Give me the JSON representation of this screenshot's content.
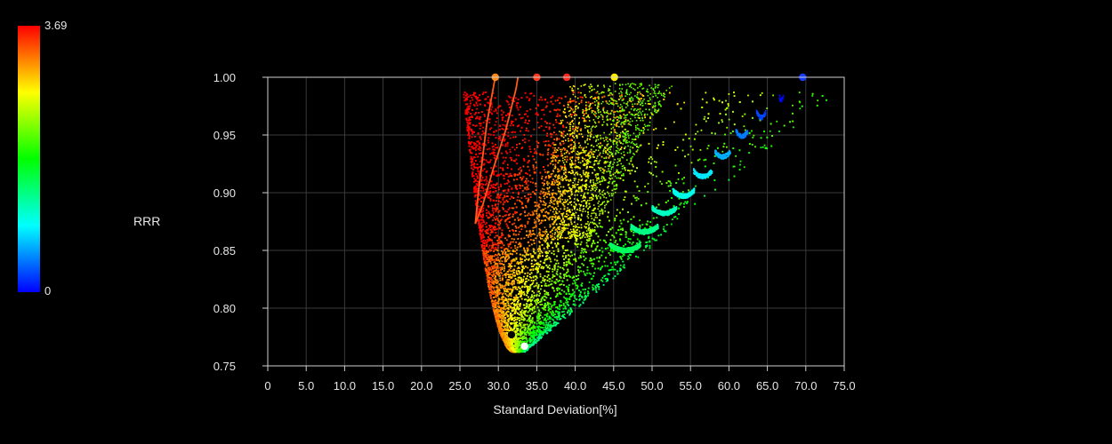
{
  "chart_data": {
    "type": "scatter",
    "xlabel": "Standard Deviation[%]",
    "ylabel": "RRR",
    "xlim": [
      0,
      75
    ],
    "ylim": [
      0.75,
      1.0
    ],
    "x_ticks": [
      "0",
      "5.0",
      "10.0",
      "15.0",
      "20.0",
      "25.0",
      "30.0",
      "35.0",
      "40.0",
      "45.0",
      "50.0",
      "55.0",
      "60.0",
      "65.0",
      "70.0",
      "75.0"
    ],
    "y_ticks": [
      "0.75",
      "0.80",
      "0.85",
      "0.90",
      "0.95",
      "1.00"
    ],
    "grid": true,
    "colorbar": {
      "min_label": "0",
      "max_label": "3.69",
      "min": 0,
      "max": 3.69
    },
    "frontier_lines": [
      {
        "color": "#ff5a1e",
        "points": [
          [
            29.6,
            1.0
          ],
          [
            28.5,
            0.96
          ],
          [
            27.4,
            0.9
          ],
          [
            27.0,
            0.873
          ],
          [
            28.0,
            0.89
          ],
          [
            29.3,
            0.92
          ],
          [
            31.0,
            0.955
          ],
          [
            32.3,
            0.99
          ],
          [
            32.8,
            1.01
          ]
        ]
      }
    ],
    "highlight_points": [
      {
        "x": 29.6,
        "y": 1.0,
        "color": "#ff8c1a"
      },
      {
        "x": 35.0,
        "y": 1.0,
        "color": "#ff3c1e"
      },
      {
        "x": 38.9,
        "y": 1.0,
        "color": "#ff2a1e"
      },
      {
        "x": 45.1,
        "y": 1.0,
        "color": "#ffee00"
      },
      {
        "x": 69.6,
        "y": 1.0,
        "color": "#1a3cff"
      },
      {
        "x": 31.7,
        "y": 0.777,
        "color": "#000000"
      },
      {
        "x": 33.4,
        "y": 0.767,
        "color": "#ffffff"
      }
    ],
    "clusters": [
      {
        "x": 66.8,
        "y": 0.984,
        "spread": 0.3,
        "count": 6,
        "colorValue": 0.0
      },
      {
        "x": 64.2,
        "y": 0.969,
        "spread": 0.6,
        "count": 18,
        "colorValue": 0.25
      },
      {
        "x": 61.7,
        "y": 0.953,
        "spread": 0.8,
        "count": 30,
        "colorValue": 0.45
      },
      {
        "x": 59.2,
        "y": 0.935,
        "spread": 1.0,
        "count": 45,
        "colorValue": 0.65
      },
      {
        "x": 56.6,
        "y": 0.918,
        "spread": 1.2,
        "count": 60,
        "colorValue": 0.85
      },
      {
        "x": 54.1,
        "y": 0.901,
        "spread": 1.4,
        "count": 80,
        "colorValue": 1.0
      },
      {
        "x": 51.6,
        "y": 0.886,
        "spread": 1.6,
        "count": 100,
        "colorValue": 1.15
      },
      {
        "x": 49.0,
        "y": 0.87,
        "spread": 1.8,
        "count": 130,
        "colorValue": 1.35
      },
      {
        "x": 46.5,
        "y": 0.854,
        "spread": 2.0,
        "count": 160,
        "colorValue": 1.5
      }
    ]
  }
}
